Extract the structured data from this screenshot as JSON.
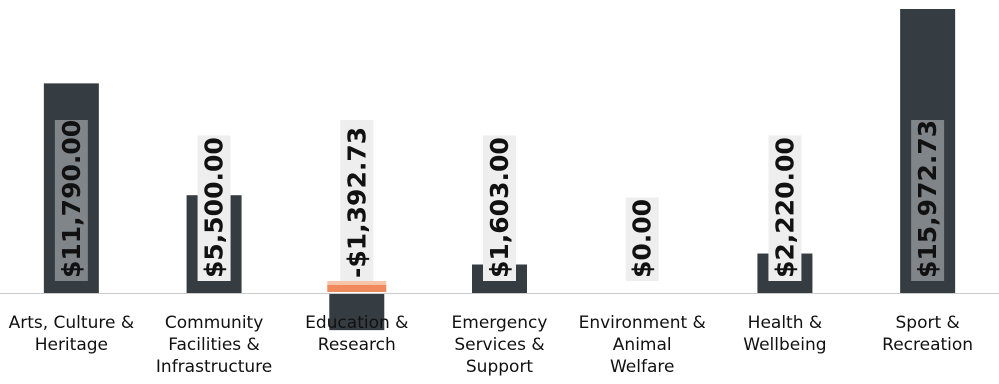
{
  "chart_data": {
    "type": "bar",
    "title": "",
    "xlabel": "",
    "ylabel": "",
    "grid": false,
    "legend": "none",
    "ylim": [
      -2000,
      16500
    ],
    "colors": {
      "bar": "#363d42",
      "negative_marker": "#f08a5d",
      "negative_marker_light": "#f7c4a8",
      "label_box": "#eeeeee",
      "label_box_on_bar": "#7f8588",
      "baseline": "#cccccc"
    },
    "categories": [
      [
        "Arts, Culture &",
        "Heritage"
      ],
      [
        "Community",
        "Facilities &",
        "Infrastructure"
      ],
      [
        "Education &",
        "Research"
      ],
      [
        "Emergency",
        "Services &",
        "Support"
      ],
      [
        "Environment &",
        "Animal",
        "Welfare"
      ],
      [
        "Health &",
        "Wellbeing"
      ],
      [
        "Sport &",
        "Recreation"
      ]
    ],
    "values": [
      11790.0,
      5500.0,
      -1392.73,
      1603.0,
      0.0,
      2220.0,
      15972.73
    ],
    "data_labels": [
      "$11,790.00",
      "$5,500.00",
      "-$1,392.73",
      "$1,603.00",
      "$0.00",
      "$2,220.00",
      "$15,972.73"
    ]
  }
}
